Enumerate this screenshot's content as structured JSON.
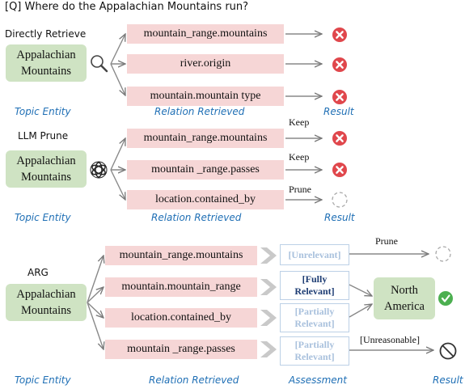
{
  "question": "[Q] Where do the Appalachian Mountains run?",
  "panel1": {
    "header": "Directly Retrieve",
    "entity": [
      "Appalachian",
      "Mountains"
    ],
    "relations": [
      "mountain_range.mountains",
      "river.origin",
      "mountain.mountain type"
    ],
    "captions": {
      "topic": "Topic Entity",
      "relation": "Relation Retrieved",
      "result": "Result"
    }
  },
  "panel2": {
    "header": "LLM Prune",
    "entity": [
      "Appalachian",
      "Mountains"
    ],
    "relations": [
      "mountain_range.mountains",
      "mountain _range.passes",
      "location.contained_by"
    ],
    "decisions": [
      "Keep",
      "Keep",
      "Prune"
    ],
    "captions": {
      "topic": "Topic Entity",
      "relation": "Relation Retrieved",
      "result": "Result"
    }
  },
  "panel3": {
    "header": "ARG",
    "entity": [
      "Appalachian",
      "Mountains"
    ],
    "relations": [
      "mountain_range.mountains",
      "mountain.mountain_range",
      "location.contained_by",
      "mountain _range.passes"
    ],
    "assessments": [
      [
        "[Unrelevant]"
      ],
      [
        "[Fully",
        "Relevant]"
      ],
      [
        "[Partially",
        "Relevant]"
      ],
      [
        "[Partially",
        "Relevant]"
      ]
    ],
    "edge_labels": {
      "prune": "Prune",
      "unreasonable": "[Unreasonable]"
    },
    "answer": [
      "North",
      "America"
    ],
    "captions": {
      "topic": "Topic Entity",
      "relation": "Relation Retrieved",
      "assessment": "Assessment",
      "result": "Result"
    }
  },
  "colors": {
    "entity": "#cfe3c3",
    "relation": "#f6d6d6",
    "caption": "#1f6fb5",
    "reject": "#e0474c",
    "accept": "#4caf50",
    "assessment_strong": "#1d3c73",
    "assessment_faded": "#a9c1dd"
  },
  "icons": [
    "magnifier-icon",
    "openai-logo-icon",
    "reject-x-icon",
    "empty-dashed-circle-icon",
    "check-icon",
    "prohibited-icon",
    "chevron-arrow-icon"
  ]
}
